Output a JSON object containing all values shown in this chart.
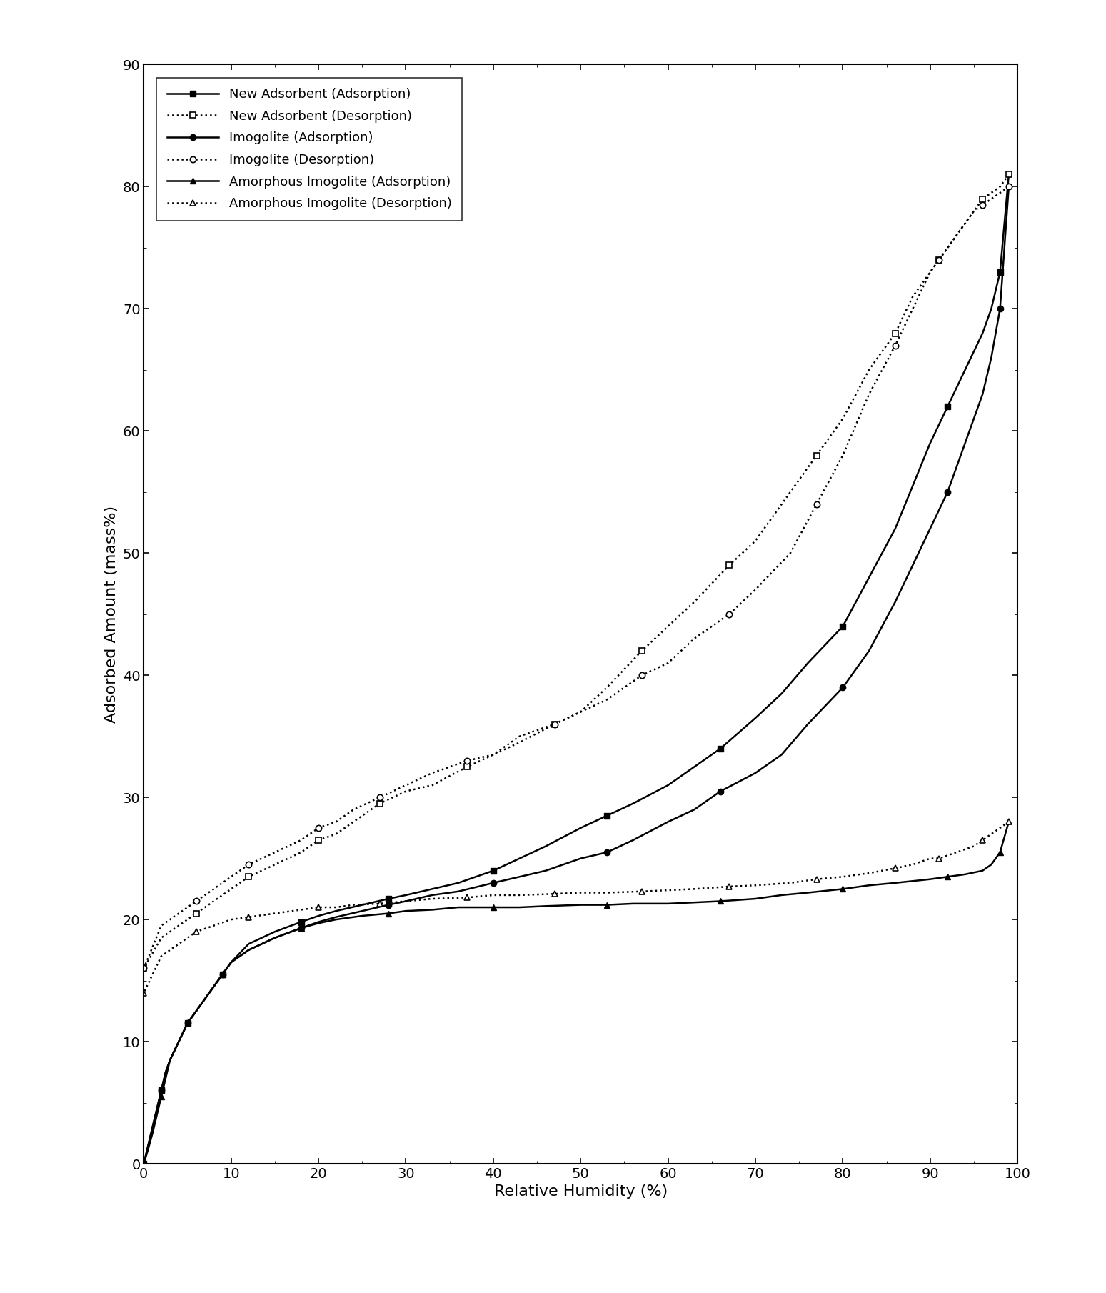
{
  "title": "",
  "xlabel": "Relative Humidity (%)",
  "ylabel": "Adsorbed Amount (mass%)",
  "xlim": [
    0,
    100
  ],
  "ylim": [
    0,
    90
  ],
  "xticks": [
    0,
    10,
    20,
    30,
    40,
    50,
    60,
    70,
    80,
    90,
    100
  ],
  "yticks": [
    0,
    10,
    20,
    30,
    40,
    50,
    60,
    70,
    80,
    90
  ],
  "new_ads_adsorption_x": [
    0,
    0.5,
    1,
    1.5,
    2,
    2.5,
    3,
    4,
    5,
    6,
    7,
    8,
    9,
    10,
    12,
    15,
    18,
    20,
    22,
    25,
    28,
    30,
    33,
    36,
    40,
    43,
    46,
    50,
    53,
    56,
    60,
    63,
    66,
    70,
    73,
    76,
    80,
    83,
    86,
    90,
    92,
    94,
    96,
    97,
    98,
    99
  ],
  "new_ads_adsorption_y": [
    0,
    1.5,
    3,
    4.5,
    6,
    7.5,
    8.5,
    10,
    11.5,
    12.5,
    13.5,
    14.5,
    15.5,
    16.5,
    18,
    19,
    19.8,
    20.3,
    20.7,
    21.2,
    21.7,
    22,
    22.5,
    23,
    24,
    25,
    26,
    27.5,
    28.5,
    29.5,
    31,
    32.5,
    34,
    36.5,
    38.5,
    41,
    44,
    48,
    52,
    59,
    62,
    65,
    68,
    70,
    73,
    81
  ],
  "new_ads_desorption_x": [
    99,
    98,
    97,
    96,
    95,
    93,
    91,
    90,
    88,
    86,
    83,
    80,
    77,
    74,
    70,
    67,
    63,
    60,
    57,
    53,
    50,
    47,
    43,
    40,
    37,
    33,
    30,
    27,
    24,
    22,
    20,
    18,
    15,
    12,
    10,
    8,
    6,
    4,
    2,
    0
  ],
  "new_ads_desorption_y": [
    81,
    80,
    79.5,
    79,
    78,
    76,
    74,
    73,
    71,
    68,
    65,
    61,
    58,
    55,
    51,
    49,
    46,
    44,
    42,
    39,
    37,
    36,
    34.5,
    33.5,
    32.5,
    31,
    30.5,
    29.5,
    28,
    27,
    26.5,
    25.5,
    24.5,
    23.5,
    22.5,
    21.5,
    20.5,
    19.5,
    18.5,
    16
  ],
  "imogolite_adsorption_x": [
    0,
    0.5,
    1,
    1.5,
    2,
    2.5,
    3,
    4,
    5,
    6,
    7,
    8,
    9,
    10,
    12,
    15,
    18,
    20,
    22,
    25,
    28,
    30,
    33,
    36,
    40,
    43,
    46,
    50,
    53,
    56,
    60,
    63,
    66,
    70,
    73,
    76,
    80,
    83,
    86,
    90,
    92,
    94,
    96,
    97,
    98,
    99
  ],
  "imogolite_adsorption_y": [
    0,
    1.5,
    3,
    4.5,
    6,
    7.5,
    8.5,
    10,
    11.5,
    12.5,
    13.5,
    14.5,
    15.5,
    16.5,
    17.5,
    18.5,
    19.3,
    19.8,
    20.2,
    20.7,
    21.2,
    21.5,
    22,
    22.3,
    23,
    23.5,
    24,
    25,
    25.5,
    26.5,
    28,
    29,
    30.5,
    32,
    33.5,
    36,
    39,
    42,
    46,
    52,
    55,
    59,
    63,
    66,
    70,
    80
  ],
  "imogolite_desorption_x": [
    99,
    98,
    97,
    96,
    95,
    93,
    91,
    90,
    88,
    86,
    83,
    80,
    77,
    74,
    70,
    67,
    63,
    60,
    57,
    53,
    50,
    47,
    43,
    40,
    37,
    33,
    30,
    27,
    24,
    22,
    20,
    18,
    15,
    12,
    10,
    8,
    6,
    4,
    2,
    0
  ],
  "imogolite_desorption_y": [
    80,
    79.5,
    79,
    78.5,
    78,
    76,
    74,
    73,
    70,
    67,
    63,
    58,
    54,
    50,
    47,
    45,
    43,
    41,
    40,
    38,
    37,
    36,
    35,
    33.5,
    33,
    32,
    31,
    30,
    29,
    28,
    27.5,
    26.5,
    25.5,
    24.5,
    23.5,
    22.5,
    21.5,
    20.5,
    19.5,
    16
  ],
  "amorphous_adsorption_x": [
    0,
    0.5,
    1,
    1.5,
    2,
    2.5,
    3,
    4,
    5,
    6,
    7,
    8,
    9,
    10,
    12,
    15,
    18,
    20,
    22,
    25,
    28,
    30,
    33,
    36,
    40,
    43,
    46,
    50,
    53,
    56,
    60,
    63,
    66,
    70,
    73,
    76,
    80,
    83,
    86,
    90,
    92,
    94,
    96,
    97,
    98,
    99
  ],
  "amorphous_adsorption_y": [
    0,
    1.2,
    2.5,
    4,
    5.5,
    7,
    8.5,
    10,
    11.5,
    12.5,
    13.5,
    14.5,
    15.5,
    16.5,
    17.5,
    18.5,
    19.3,
    19.7,
    20,
    20.3,
    20.5,
    20.7,
    20.8,
    21,
    21,
    21,
    21.1,
    21.2,
    21.2,
    21.3,
    21.3,
    21.4,
    21.5,
    21.7,
    22,
    22.2,
    22.5,
    22.8,
    23,
    23.3,
    23.5,
    23.7,
    24,
    24.5,
    25.5,
    28
  ],
  "amorphous_desorption_x": [
    99,
    98,
    97,
    96,
    95,
    93,
    91,
    90,
    88,
    86,
    83,
    80,
    77,
    74,
    70,
    67,
    63,
    60,
    57,
    53,
    50,
    47,
    43,
    40,
    37,
    33,
    30,
    27,
    24,
    22,
    20,
    18,
    15,
    12,
    10,
    8,
    6,
    4,
    2,
    0
  ],
  "amorphous_desorption_y": [
    28,
    27.5,
    27,
    26.5,
    26,
    25.5,
    25,
    25,
    24.5,
    24.2,
    23.8,
    23.5,
    23.3,
    23,
    22.8,
    22.7,
    22.5,
    22.4,
    22.3,
    22.2,
    22.2,
    22.1,
    22,
    22,
    21.8,
    21.7,
    21.5,
    21.3,
    21.2,
    21,
    21,
    20.8,
    20.5,
    20.2,
    20,
    19.5,
    19,
    18,
    17,
    14
  ],
  "background_color": "#ffffff"
}
